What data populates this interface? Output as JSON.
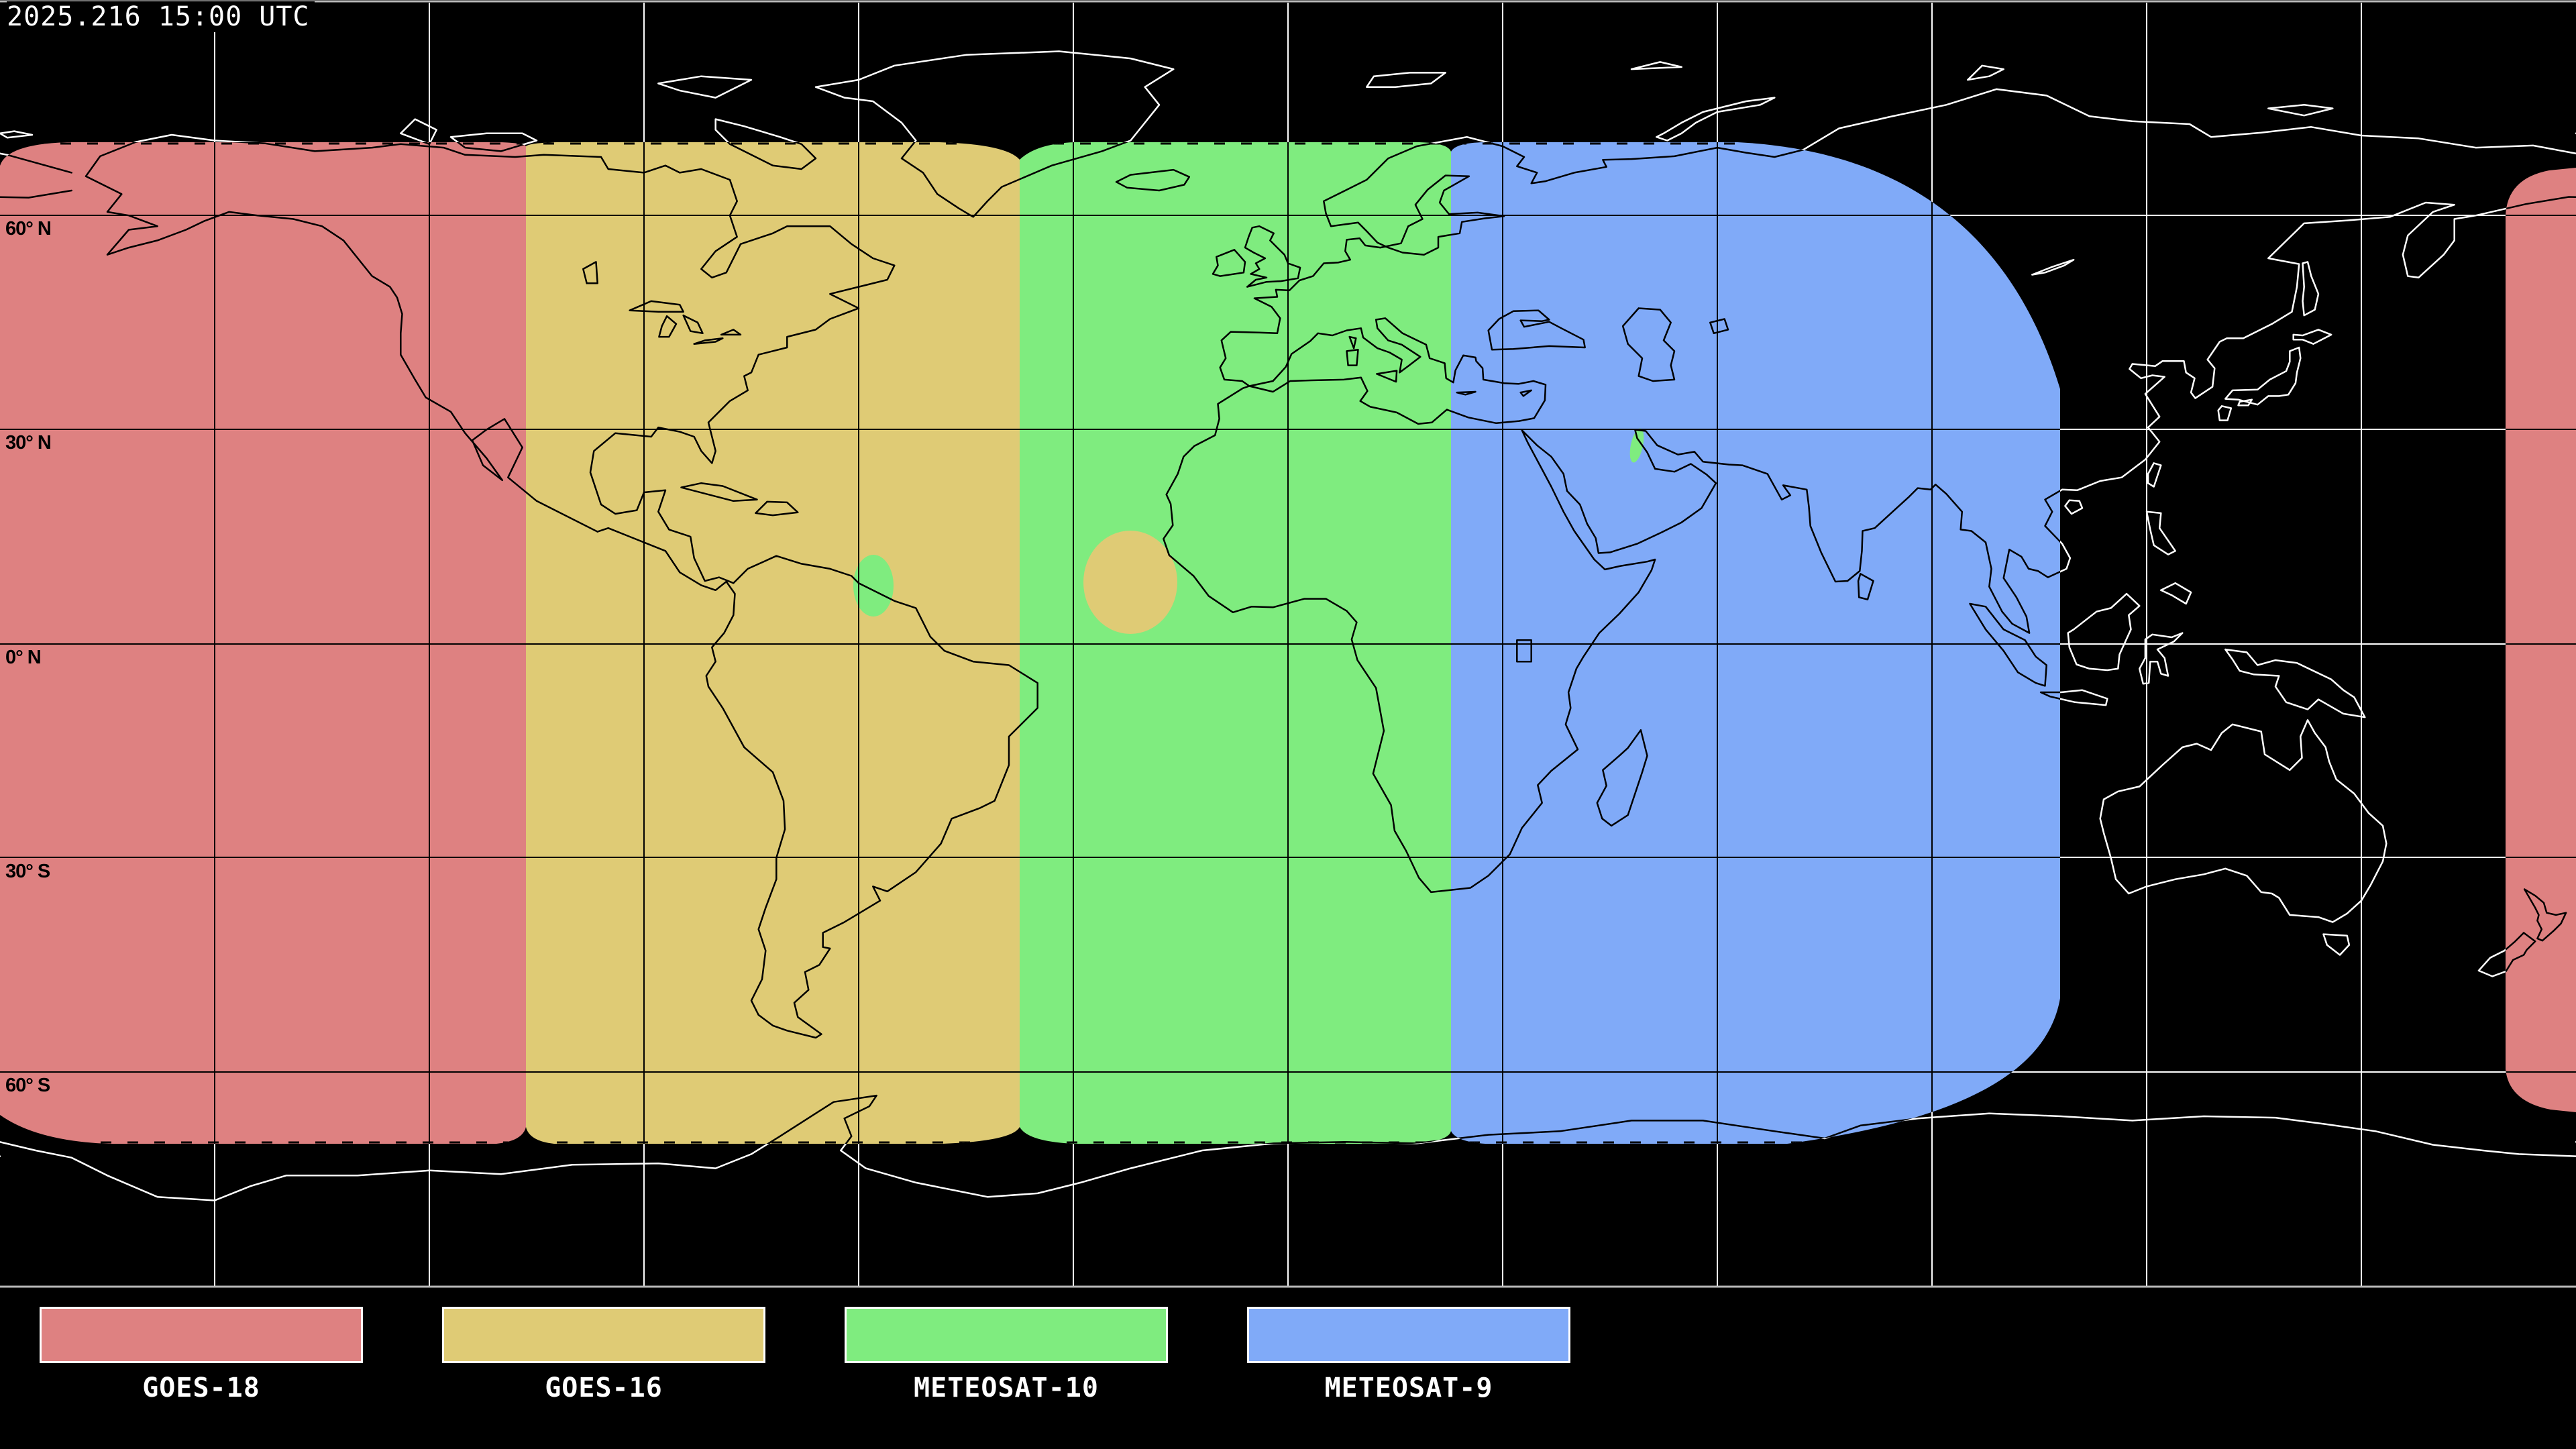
{
  "timestamp": "2025.216 15:00 UTC",
  "map": {
    "background": "#000000",
    "border_color": "#b9b9b9",
    "grid_color_over_space": "#ffffff",
    "grid_color_over_coverage": "#000000",
    "coastline_color_over_space": "#ffffff",
    "coastline_color_over_coverage": "#000000",
    "lat_labels": [
      {
        "text": "60° N"
      },
      {
        "text": "30° N"
      },
      {
        "text": "0° N"
      },
      {
        "text": "30° S"
      },
      {
        "text": "60° S"
      }
    ]
  },
  "legend": {
    "items": [
      {
        "label": "GOES-18",
        "color": "#de8181"
      },
      {
        "label": "GOES-16",
        "color": "#dfcb75"
      },
      {
        "label": "METEOSAT-10",
        "color": "#7fec7f"
      },
      {
        "label": "METEOSAT-9",
        "color": "#80aaf8"
      }
    ]
  }
}
